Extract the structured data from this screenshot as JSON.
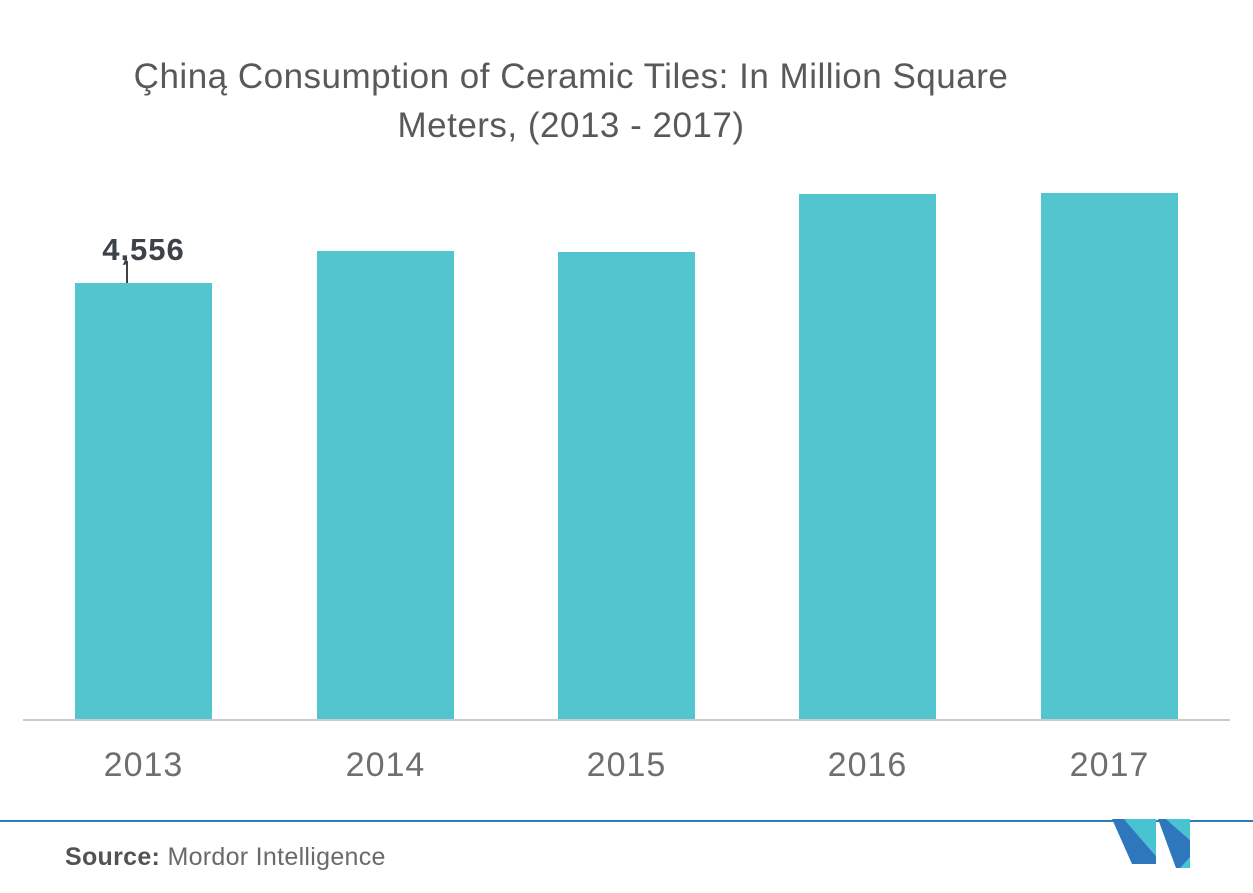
{
  "title": {
    "line1": "Çhiną Consumption of Ceramic Tiles: In Million Square",
    "line2": "Meters, (2013 - 2017)"
  },
  "chart_data": {
    "type": "bar",
    "title": "Çhiną Consumption of Ceramic Tiles: In Million Square Meters, (2013 - 2017)",
    "categories": [
      "2013",
      "2014",
      "2015",
      "2016",
      "2017"
    ],
    "values": [
      4556,
      4890,
      4880,
      5490,
      5500
    ],
    "bar_labels": [
      "4,556",
      "",
      "",
      "",
      ""
    ],
    "xlabel": "",
    "ylabel": "",
    "ylim": [
      0,
      6000
    ],
    "grid": false,
    "legend": false,
    "bar_color": "#52c5ce",
    "axis_line_color": "#cbcbcb",
    "value_label_color": "#3c4247"
  },
  "footer": {
    "source_label": "Source:",
    "source_value": "Mordor Intelligence",
    "divider_color": "#2c7cb8"
  },
  "logo": {
    "name": "mordor-intelligence-logo",
    "teal": "#48c3d1",
    "blue": "#2e77bd"
  }
}
